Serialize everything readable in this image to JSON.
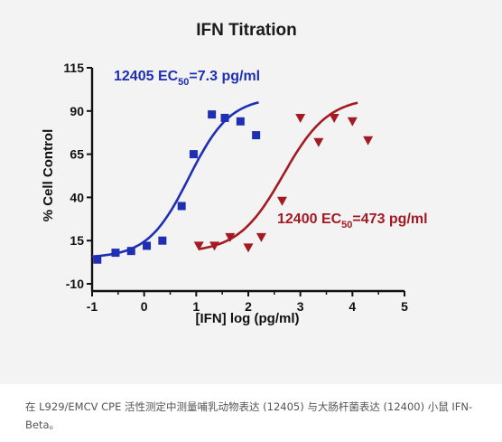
{
  "chart_data": {
    "type": "scatter",
    "title": "IFN Titration",
    "xlabel": "[IFN] log (pg/ml)",
    "ylabel": "% Cell Control",
    "xlim": [
      -1,
      5
    ],
    "ylim": [
      -10,
      115
    ],
    "xticks": [
      "-1",
      "0",
      "1",
      "2",
      "3",
      "4",
      "5"
    ],
    "yticks": [
      "-10",
      "15",
      "40",
      "65",
      "90",
      "115"
    ],
    "grid": false,
    "series": [
      {
        "name": "12405",
        "color": "#1f2fb3",
        "marker": "square",
        "x": [
          -0.9,
          -0.55,
          -0.25,
          0.05,
          0.35,
          0.72,
          0.95,
          1.3,
          1.55,
          1.85,
          2.15
        ],
        "y": [
          4,
          8,
          9,
          12,
          15,
          35,
          65,
          88,
          86,
          84,
          76
        ],
        "fit": {
          "bottom": 5,
          "top": 98,
          "ec50_log": 0.86,
          "hill": 1.1,
          "x_range": [
            -1,
            2.2
          ]
        },
        "annotation": {
          "prefix": "12405 EC",
          "sub": "50",
          "suffix": "=7.3 pg/ml"
        }
      },
      {
        "name": "12400",
        "color": "#a31a22",
        "marker": "triangle-down",
        "x": [
          1.05,
          1.35,
          1.65,
          2.0,
          2.25,
          2.65,
          3.0,
          3.35,
          3.65,
          4.0,
          4.3
        ],
        "y": [
          12,
          12,
          17,
          11,
          17,
          38,
          86,
          72,
          86,
          84,
          73
        ],
        "fit": {
          "bottom": 8,
          "top": 98,
          "ec50_log": 2.67,
          "hill": 1.0,
          "x_range": [
            1.05,
            4.1
          ]
        },
        "annotation": {
          "prefix": "12400 EC",
          "sub": "50",
          "suffix": "=473 pg/ml"
        }
      }
    ]
  },
  "caption": "在 L929/EMCV CPE 活性测定中测量哺乳动物表达 (12405) 与大肠杆菌表达 (12400) 小鼠 IFN-Beta。"
}
